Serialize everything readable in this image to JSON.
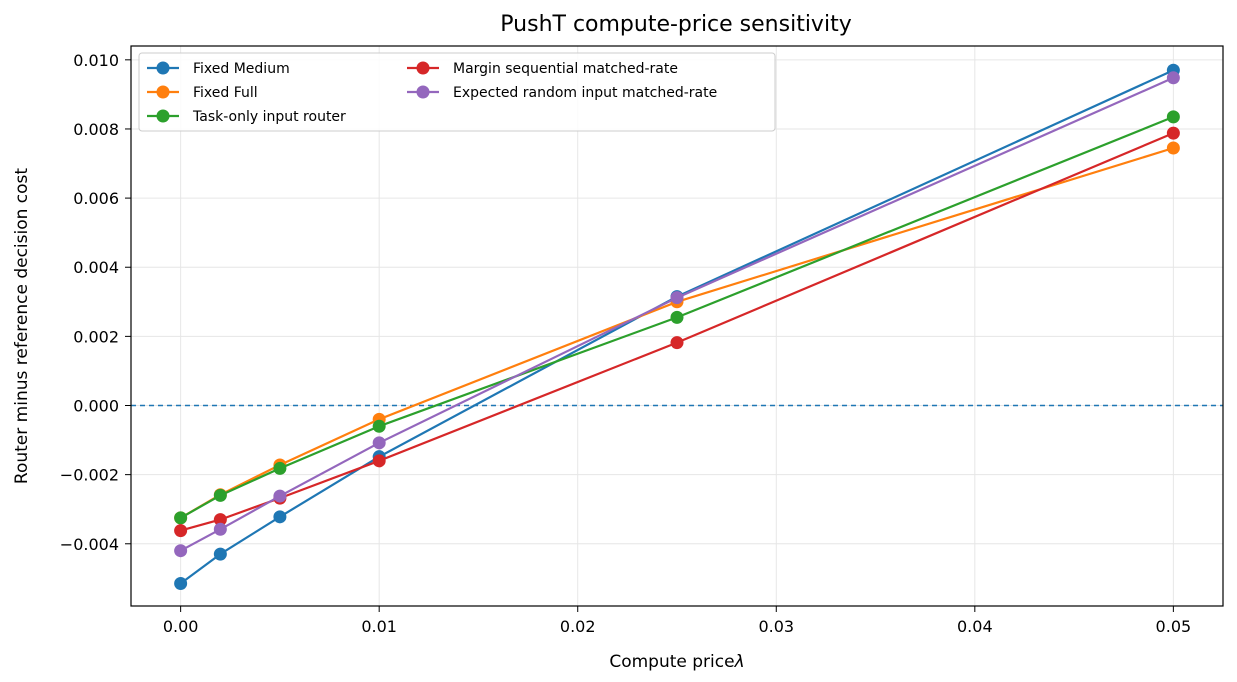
{
  "chart_data": {
    "type": "line",
    "title": "PushT compute-price sensitivity",
    "xlabel": "Compute price",
    "xlabel_symbol": "λ",
    "ylabel": "Router minus reference decision cost",
    "x": [
      0.0,
      0.002,
      0.005,
      0.01,
      0.025,
      0.05
    ],
    "xlim": [
      -0.0025,
      0.0525
    ],
    "ylim": [
      -0.0058,
      0.0104
    ],
    "xticks": [
      0.0,
      0.01,
      0.02,
      0.03,
      0.04,
      0.05
    ],
    "xtick_labels": [
      "0.00",
      "0.01",
      "0.02",
      "0.03",
      "0.04",
      "0.05"
    ],
    "yticks": [
      -0.004,
      -0.002,
      0.0,
      0.002,
      0.004,
      0.006,
      0.008,
      0.01
    ],
    "ytick_labels": [
      "−0.004",
      "−0.002",
      "0.000",
      "0.002",
      "0.004",
      "0.006",
      "0.008",
      "0.010"
    ],
    "grid": true,
    "reference_line": {
      "y": 0.0,
      "style": "dashed",
      "color": "#1f77b4"
    },
    "legend_position": "top-left",
    "series": [
      {
        "name": "Fixed Medium",
        "color": "#1f77b4",
        "values": [
          -0.00515,
          -0.0043,
          -0.00322,
          -0.00148,
          0.00315,
          0.0097
        ]
      },
      {
        "name": "Fixed Full",
        "color": "#ff7f0e",
        "values": [
          -0.00325,
          -0.00258,
          -0.00172,
          -0.0004,
          0.003,
          0.00745
        ]
      },
      {
        "name": "Task-only input router",
        "color": "#2ca02c",
        "values": [
          -0.00325,
          -0.0026,
          -0.00182,
          -0.0006,
          0.00255,
          0.00835
        ]
      },
      {
        "name": "Margin sequential matched-rate",
        "color": "#d62728",
        "values": [
          -0.00362,
          -0.0033,
          -0.00268,
          -0.0016,
          0.00182,
          0.00788
        ]
      },
      {
        "name": "Expected random input matched-rate",
        "color": "#9467bd",
        "values": [
          -0.0042,
          -0.00358,
          -0.00262,
          -0.00108,
          0.00312,
          0.00948
        ]
      }
    ]
  }
}
